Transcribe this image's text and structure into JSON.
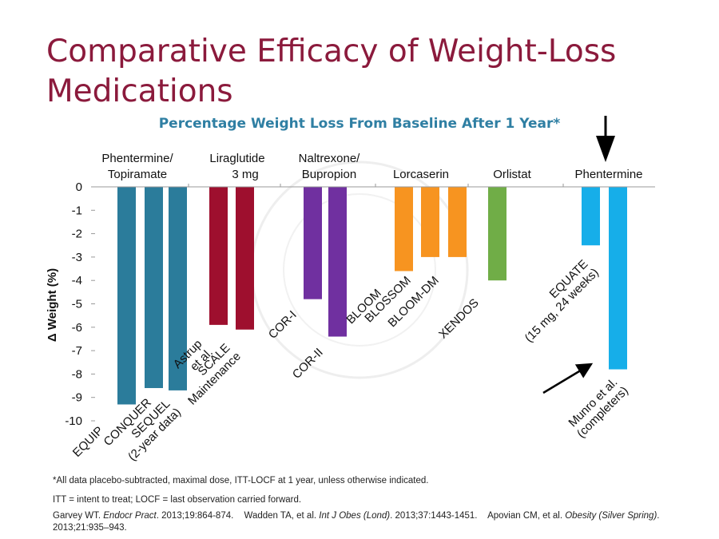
{
  "slide_title": "Comparative Efficacy of Weight-Loss Medications",
  "colors": {
    "title": "#8b1a3c",
    "chart_title": "#2f7fa3",
    "phentermine_topiramate": "#2b7c9b",
    "liraglutide": "#9e0f2e",
    "naltrexone_bupropion": "#7030a0",
    "lorcaserin": "#f79420",
    "orlistat": "#70ad47",
    "phentermine": "#16aee9"
  },
  "chart_data": {
    "type": "bar",
    "title": "Percentage Weight Loss From Baseline After 1 Year*",
    "ylabel": "Δ Weight (%)",
    "ylim": [
      -10,
      0
    ],
    "yticks": [
      "0",
      "-1",
      "-2",
      "-3",
      "-4",
      "-5",
      "-6",
      "-7",
      "-8",
      "-9",
      "-10"
    ],
    "grid": false,
    "groups": [
      {
        "name": "Phentermine/ Topiramate",
        "color_key": "phentermine_topiramate",
        "bars": [
          {
            "label": "EQUIP",
            "value": -9.3
          },
          {
            "label": "CONQUER",
            "value": -8.6
          },
          {
            "label": "SEQUEL (2-year data)",
            "value": -8.7
          }
        ]
      },
      {
        "name": "Liraglutide 3 mg",
        "color_key": "liraglutide",
        "bars": [
          {
            "label": "Astrup et al.",
            "value": -5.9
          },
          {
            "label": "SCALE Maintenance",
            "value": -6.1
          }
        ]
      },
      {
        "name": "Naltrexone/ Bupropion",
        "color_key": "naltrexone_bupropion",
        "bars": [
          {
            "label": "COR-I",
            "value": -4.8
          },
          {
            "label": "COR-II",
            "value": -6.4
          }
        ]
      },
      {
        "name": "Lorcaserin",
        "color_key": "lorcaserin",
        "bars": [
          {
            "label": "BLOOM",
            "value": -3.6
          },
          {
            "label": "BLOSSOM",
            "value": -3.0
          },
          {
            "label": "BLOOM-DM",
            "value": -3.0
          }
        ]
      },
      {
        "name": "Orlistat",
        "color_key": "orlistat",
        "bars": [
          {
            "label": "XENDOS",
            "value": -4.0
          }
        ]
      },
      {
        "name": "Phentermine",
        "color_key": "phentermine",
        "bars": [
          {
            "label": "EQUATE (15 mg, 24 weeks)",
            "value": -2.5
          },
          {
            "label": "Munro et al. (completers)",
            "value": -7.8
          }
        ]
      }
    ],
    "annotations": [
      "down-arrow-above-phentermine",
      "arrow-to-munro-bar"
    ]
  },
  "footnotes": {
    "note1": "*All data placebo-subtracted, maximal dose, ITT-LOCF at 1 year, unless otherwise indicated.",
    "note2": "ITT = intent to treat; LOCF = last observation carried forward."
  },
  "sources": [
    {
      "authors": "Garvey WT.",
      "journal": "Endocr Pract",
      "details": ". 2013;19:864-874."
    },
    {
      "authors": "Wadden TA, et al.",
      "journal": "Int J Obes (Lond)",
      "details": ". 2013;37:1443-1451."
    },
    {
      "authors": "Apovian CM, et al.",
      "journal": "Obesity (Silver Spring)",
      "details": ". 2013;21:935–943."
    }
  ]
}
